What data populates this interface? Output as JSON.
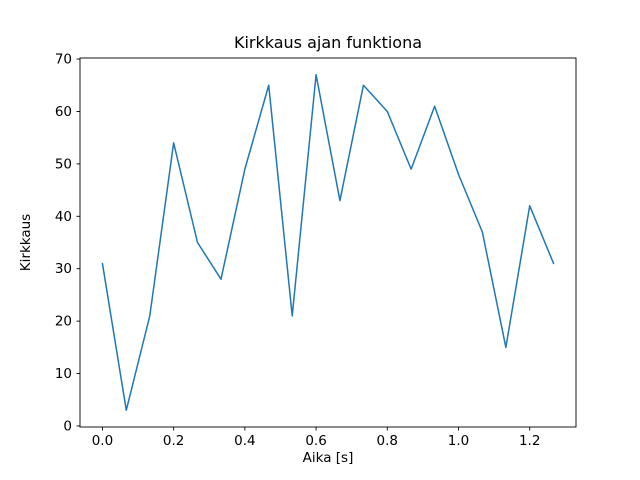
{
  "figure": {
    "background": "#ffffff"
  },
  "chart_data": {
    "type": "line",
    "title": "Kirkkaus ajan funktiona",
    "xlabel": "Aika [s]",
    "ylabel": "Kirkkaus",
    "x": [
      0.0,
      0.067,
      0.133,
      0.2,
      0.267,
      0.333,
      0.4,
      0.467,
      0.533,
      0.6,
      0.667,
      0.733,
      0.8,
      0.867,
      0.933,
      1.0,
      1.067,
      1.133,
      1.2,
      1.267
    ],
    "y": [
      31,
      3,
      21,
      54,
      35,
      28,
      49,
      65,
      21,
      67,
      43,
      65,
      60,
      49,
      61,
      48,
      37,
      15,
      42,
      31
    ],
    "xlim": [
      -0.063,
      1.33
    ],
    "ylim": [
      -0.2,
      70.2
    ],
    "xticks": [
      0.0,
      0.2,
      0.4,
      0.6,
      0.8,
      1.0,
      1.2
    ],
    "yticks": [
      0,
      10,
      20,
      30,
      40,
      50,
      60,
      70
    ],
    "line_color": "#1f77b4",
    "axis_color": "#000000",
    "grid": false,
    "legend_position": "none"
  }
}
